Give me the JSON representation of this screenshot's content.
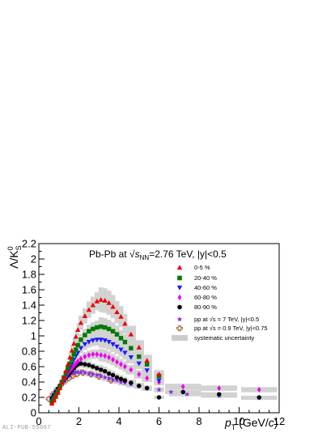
{
  "chart_data": {
    "type": "scatter",
    "title_parts": {
      "system": "Pb-Pb at ",
      "sqrt_symbol": "√",
      "s_letter": "s",
      "nn_sub": "NN",
      "rest": "=2.76 TeV, |y|<0.5"
    },
    "xlabel": {
      "p": "p",
      "t_sub": "T",
      "unit_open": " (GeV/",
      "c": "c",
      "unit_close": ")"
    },
    "ylabel": {
      "lambda": "Λ/K",
      "s_sub": "S",
      "zero_sup": "0"
    },
    "xlim": [
      0,
      12
    ],
    "ylim": [
      0,
      2.2
    ],
    "xticks": [
      0,
      2,
      4,
      6,
      8,
      10,
      12
    ],
    "xtick_labels": [
      "0",
      "2",
      "4",
      "6",
      "8",
      "10",
      "12"
    ],
    "yticks": [
      0,
      0.2,
      0.4,
      0.6,
      0.8,
      1.0,
      1.2,
      1.4,
      1.6,
      1.8,
      2.0,
      2.2
    ],
    "ytick_labels": [
      "0",
      "0.2",
      "0.4",
      "0.6",
      "0.8",
      "1",
      "1.2",
      "1.4",
      "1.6",
      "1.8",
      "2",
      "2.2"
    ],
    "grid": false,
    "legend_position": "top-right",
    "watermark": "ALI-PUB-55067",
    "systematic_label": "systematic uncertainty",
    "series": [
      {
        "name": "0-5 %",
        "marker": "triangle-up",
        "color": "#ee0000",
        "x": [
          0.65,
          0.75,
          0.85,
          0.95,
          1.05,
          1.15,
          1.25,
          1.35,
          1.45,
          1.55,
          1.65,
          1.75,
          1.85,
          1.95,
          2.1,
          2.3,
          2.5,
          2.7,
          2.9,
          3.1,
          3.3,
          3.5,
          3.7,
          3.9,
          4.1,
          4.3,
          4.6,
          5.0,
          5.4,
          6.0
        ],
        "y": [
          0.12,
          0.16,
          0.21,
          0.26,
          0.32,
          0.39,
          0.46,
          0.54,
          0.63,
          0.72,
          0.81,
          0.9,
          0.99,
          1.08,
          1.17,
          1.26,
          1.34,
          1.4,
          1.45,
          1.47,
          1.46,
          1.43,
          1.38,
          1.31,
          1.25,
          1.16,
          1.02,
          0.85,
          0.68,
          0.5
        ]
      },
      {
        "name": "20-40 %",
        "marker": "square",
        "color": "#007a00",
        "x": [
          0.65,
          0.75,
          0.85,
          0.95,
          1.05,
          1.15,
          1.25,
          1.35,
          1.45,
          1.55,
          1.65,
          1.75,
          1.85,
          1.95,
          2.1,
          2.3,
          2.5,
          2.7,
          2.9,
          3.1,
          3.3,
          3.5,
          3.7,
          3.9,
          4.1,
          4.3,
          4.6,
          5.0,
          5.4,
          6.0
        ],
        "y": [
          0.14,
          0.18,
          0.23,
          0.28,
          0.34,
          0.4,
          0.46,
          0.52,
          0.58,
          0.64,
          0.7,
          0.76,
          0.82,
          0.88,
          0.95,
          1.01,
          1.06,
          1.09,
          1.11,
          1.12,
          1.11,
          1.09,
          1.06,
          1.02,
          0.97,
          0.92,
          0.84,
          0.73,
          0.63,
          0.48
        ]
      },
      {
        "name": "40-60 %",
        "marker": "triangle-down",
        "color": "#1a1aff",
        "x": [
          0.65,
          0.75,
          0.85,
          0.95,
          1.05,
          1.15,
          1.25,
          1.35,
          1.45,
          1.55,
          1.65,
          1.75,
          1.85,
          1.95,
          2.1,
          2.3,
          2.5,
          2.7,
          2.9,
          3.1,
          3.3,
          3.5,
          3.7,
          3.9,
          4.1,
          4.3,
          4.6,
          5.0,
          5.4,
          6.0
        ],
        "y": [
          0.15,
          0.19,
          0.24,
          0.29,
          0.34,
          0.39,
          0.44,
          0.49,
          0.54,
          0.59,
          0.64,
          0.69,
          0.74,
          0.78,
          0.84,
          0.89,
          0.92,
          0.94,
          0.95,
          0.95,
          0.94,
          0.92,
          0.89,
          0.86,
          0.82,
          0.78,
          0.72,
          0.64,
          0.55,
          0.42
        ]
      },
      {
        "name": "60-80 %",
        "marker": "diamond",
        "color": "#ee00ee",
        "x": [
          0.65,
          0.75,
          0.85,
          0.95,
          1.05,
          1.15,
          1.25,
          1.35,
          1.45,
          1.55,
          1.65,
          1.75,
          1.85,
          1.95,
          2.1,
          2.3,
          2.5,
          2.7,
          2.9,
          3.1,
          3.3,
          3.5,
          3.7,
          3.9,
          4.1,
          4.3,
          4.6,
          5.0,
          5.4,
          6.0,
          7.2,
          9.0,
          11.0
        ],
        "y": [
          0.16,
          0.2,
          0.25,
          0.29,
          0.34,
          0.39,
          0.43,
          0.47,
          0.51,
          0.55,
          0.58,
          0.61,
          0.64,
          0.67,
          0.7,
          0.73,
          0.75,
          0.76,
          0.76,
          0.75,
          0.74,
          0.72,
          0.69,
          0.66,
          0.63,
          0.6,
          0.56,
          0.5,
          0.45,
          0.4,
          0.34,
          0.32,
          0.3
        ]
      },
      {
        "name": "80-90 %",
        "marker": "circle",
        "color": "#000000",
        "x": [
          0.65,
          0.75,
          0.85,
          0.95,
          1.05,
          1.15,
          1.25,
          1.35,
          1.45,
          1.55,
          1.65,
          1.75,
          1.85,
          1.95,
          2.1,
          2.3,
          2.5,
          2.7,
          2.9,
          3.1,
          3.3,
          3.5,
          3.7,
          3.9,
          4.1,
          4.3,
          4.6,
          5.0,
          5.4,
          6.0,
          7.2,
          9.0,
          11.0
        ],
        "y": [
          0.19,
          0.23,
          0.27,
          0.31,
          0.35,
          0.39,
          0.42,
          0.46,
          0.49,
          0.52,
          0.55,
          0.58,
          0.61,
          0.63,
          0.64,
          0.63,
          0.62,
          0.6,
          0.58,
          0.56,
          0.54,
          0.51,
          0.49,
          0.46,
          0.44,
          0.42,
          0.39,
          0.35,
          0.32,
          0.2,
          0.27,
          0.24,
          0.2
        ]
      },
      {
        "name": "pp at √s = 7 TeV,  |y|<0.5",
        "marker": "star",
        "color": "#8a2be2",
        "x": [
          0.65,
          0.75,
          0.85,
          0.95,
          1.05,
          1.15,
          1.25,
          1.35,
          1.45,
          1.55,
          1.65,
          1.75,
          1.85,
          1.95,
          2.1,
          2.3,
          2.5,
          2.7,
          2.9,
          3.1,
          3.3,
          3.5,
          3.7,
          3.9,
          4.1,
          4.3,
          4.6,
          5.0,
          5.4,
          6.0,
          6.6,
          7.4,
          9.0,
          11.0
        ],
        "y": [
          0.2,
          0.24,
          0.28,
          0.32,
          0.36,
          0.39,
          0.42,
          0.45,
          0.47,
          0.49,
          0.51,
          0.52,
          0.53,
          0.53,
          0.53,
          0.52,
          0.51,
          0.5,
          0.49,
          0.48,
          0.46,
          0.45,
          0.43,
          0.42,
          0.4,
          0.39,
          0.37,
          0.35,
          0.32,
          0.3,
          0.27,
          0.24,
          0.22,
          0.19
        ]
      },
      {
        "name": "pp at √s = 0.9 TeV, |y|<0.75",
        "marker": "open-cross",
        "color": "#a0522d",
        "x": [
          0.5,
          0.7,
          0.9,
          1.1,
          1.3,
          1.5,
          1.7,
          1.9,
          2.2,
          2.6,
          3.0,
          3.6
        ],
        "y": [
          0.18,
          0.24,
          0.3,
          0.36,
          0.41,
          0.45,
          0.48,
          0.5,
          0.52,
          0.5,
          0.47,
          0.42
        ]
      }
    ]
  }
}
